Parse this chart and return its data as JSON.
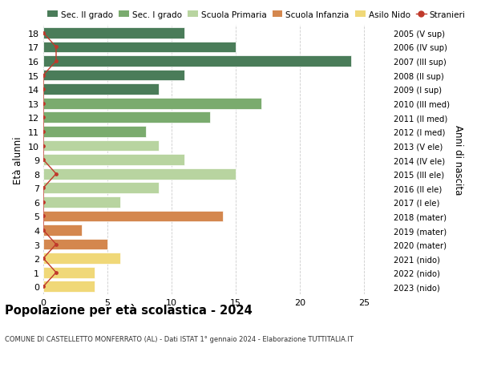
{
  "ages": [
    18,
    17,
    16,
    15,
    14,
    13,
    12,
    11,
    10,
    9,
    8,
    7,
    6,
    5,
    4,
    3,
    2,
    1,
    0
  ],
  "years": [
    "2005 (V sup)",
    "2006 (IV sup)",
    "2007 (III sup)",
    "2008 (II sup)",
    "2009 (I sup)",
    "2010 (III med)",
    "2011 (II med)",
    "2012 (I med)",
    "2013 (V ele)",
    "2014 (IV ele)",
    "2015 (III ele)",
    "2016 (II ele)",
    "2017 (I ele)",
    "2018 (mater)",
    "2019 (mater)",
    "2020 (mater)",
    "2021 (nido)",
    "2022 (nido)",
    "2023 (nido)"
  ],
  "values": [
    11,
    15,
    24,
    11,
    9,
    17,
    13,
    8,
    9,
    11,
    15,
    9,
    6,
    14,
    3,
    5,
    6,
    4,
    4
  ],
  "bar_colors": [
    "#4a7c59",
    "#4a7c59",
    "#4a7c59",
    "#4a7c59",
    "#4a7c59",
    "#7aab6e",
    "#7aab6e",
    "#7aab6e",
    "#b8d4a0",
    "#b8d4a0",
    "#b8d4a0",
    "#b8d4a0",
    "#b8d4a0",
    "#d4874e",
    "#d4874e",
    "#d4874e",
    "#f0d878",
    "#f0d878",
    "#f0d878"
  ],
  "stranieri": [
    0,
    1,
    1,
    0,
    0,
    0,
    0,
    0,
    0,
    0,
    1,
    0,
    0,
    0,
    0,
    1,
    0,
    1,
    0
  ],
  "stranieri_color": "#c0392b",
  "legend_labels": [
    "Sec. II grado",
    "Sec. I grado",
    "Scuola Primaria",
    "Scuola Infanzia",
    "Asilo Nido",
    "Stranieri"
  ],
  "legend_colors": [
    "#4a7c59",
    "#7aab6e",
    "#b8d4a0",
    "#d4874e",
    "#f0d878",
    "#c0392b"
  ],
  "title": "Popolazione per età scolastica - 2024",
  "subtitle": "COMUNE DI CASTELLETTO MONFERRATO (AL) - Dati ISTAT 1° gennaio 2024 - Elaborazione TUTTITALIA.IT",
  "ylabel_left": "Età alunni",
  "ylabel_right": "Anni di nascita",
  "xlim": [
    0,
    27
  ],
  "xticks": [
    0,
    5,
    10,
    15,
    20,
    25
  ],
  "background_color": "#ffffff",
  "grid_color": "#cccccc",
  "bar_height": 0.78
}
